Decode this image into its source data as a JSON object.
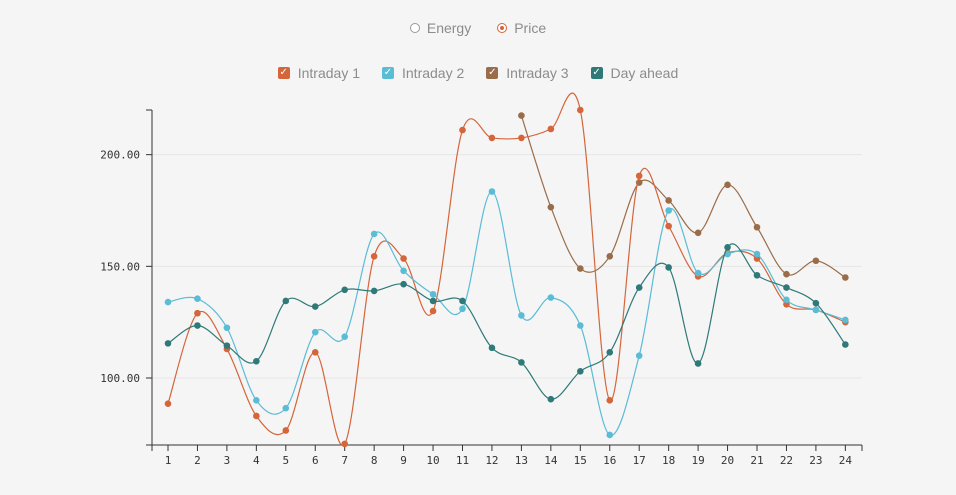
{
  "toggle": {
    "options": [
      {
        "label": "Energy",
        "selected": false
      },
      {
        "label": "Price",
        "selected": true
      }
    ]
  },
  "legend": [
    {
      "label": "Intraday 1",
      "color": "#d5653a",
      "checked": true
    },
    {
      "label": "Intraday 2",
      "color": "#5bbcd6",
      "checked": true
    },
    {
      "label": "Intraday 3",
      "color": "#9a6d4a",
      "checked": true
    },
    {
      "label": "Day ahead",
      "color": "#2f7a78",
      "checked": true
    }
  ],
  "chart_data": {
    "type": "line",
    "x": [
      1,
      2,
      3,
      4,
      5,
      6,
      7,
      8,
      9,
      10,
      11,
      12,
      13,
      14,
      15,
      16,
      17,
      18,
      19,
      20,
      21,
      22,
      23,
      24
    ],
    "ylim": [
      70,
      220
    ],
    "yticks": [
      100,
      150,
      200
    ],
    "ytick_labels": [
      "100.00",
      "150.00",
      "200.00"
    ],
    "grid": true,
    "series": [
      {
        "name": "Intraday 1",
        "color": "#d5653a",
        "values": [
          88.5,
          129,
          113,
          83,
          76.5,
          111.5,
          70.5,
          154.5,
          153.5,
          130,
          211,
          207.5,
          207.5,
          211.5,
          220,
          90,
          190.5,
          168,
          145.5,
          156,
          153.5,
          133,
          130.5,
          125
        ]
      },
      {
        "name": "Intraday 2",
        "color": "#5bbcd6",
        "values": [
          134,
          135.5,
          122.5,
          90,
          86.5,
          120.5,
          118.5,
          164.5,
          148,
          137.5,
          131,
          183.5,
          128,
          136,
          123.5,
          74.5,
          110,
          175,
          147,
          155.5,
          155.5,
          135,
          130.5,
          126
        ]
      },
      {
        "name": "Intraday 3",
        "color": "#9a6d4a",
        "values": [
          null,
          null,
          null,
          null,
          null,
          null,
          null,
          null,
          null,
          null,
          null,
          null,
          217.5,
          176.5,
          149,
          154.5,
          187.5,
          179.5,
          165,
          186.5,
          167.5,
          146.5,
          152.5,
          145
        ]
      },
      {
        "name": "Day ahead",
        "color": "#2f7a78",
        "values": [
          115.5,
          123.5,
          114.5,
          107.5,
          134.5,
          132,
          139.5,
          139,
          142,
          134.5,
          134.5,
          113.5,
          107,
          90.5,
          103,
          111.5,
          140.5,
          149.5,
          106.5,
          158.5,
          146,
          140.5,
          133.5,
          115
        ]
      }
    ]
  }
}
